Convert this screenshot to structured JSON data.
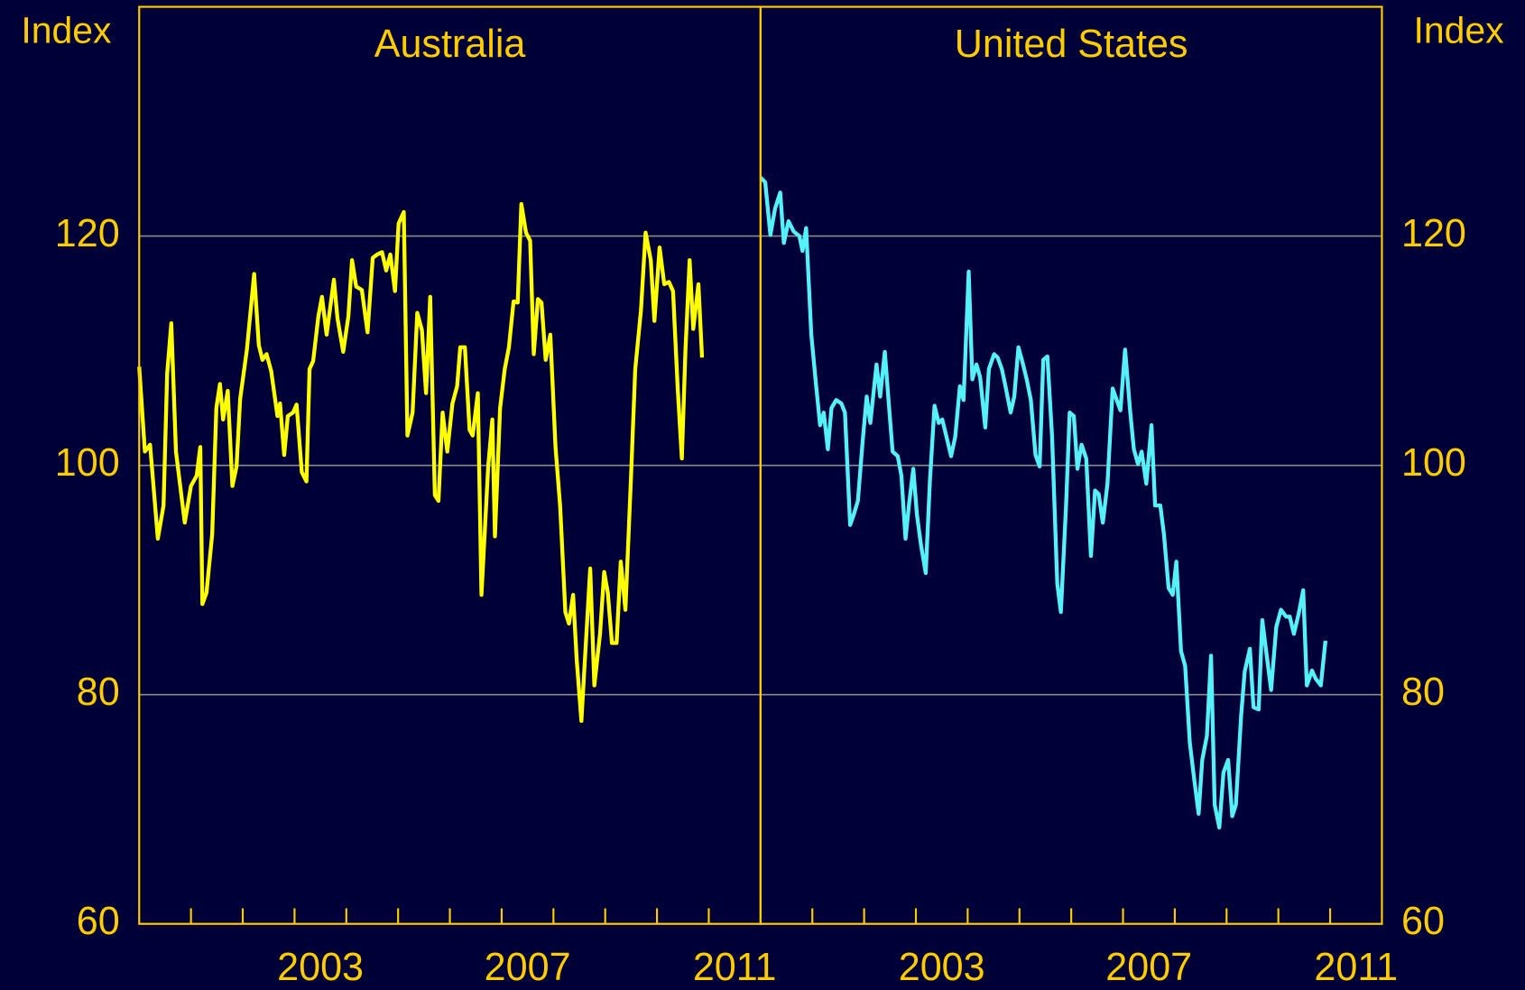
{
  "chart_data": [
    {
      "type": "line",
      "title": "Australia",
      "y_label": "Index",
      "axis_side": "left",
      "color": "#ffff00",
      "xlim": [
        2000,
        2012
      ],
      "ylim": [
        60,
        140
      ],
      "yticks": [
        60,
        80,
        100,
        120
      ],
      "grid": true,
      "xticks": [
        {
          "value": 2003.5,
          "label": "2003"
        },
        {
          "value": 2007.5,
          "label": "2007"
        },
        {
          "value": 2011.5,
          "label": "2011"
        }
      ],
      "minor_xticks": [
        2001,
        2002,
        2003,
        2004,
        2005,
        2006,
        2007,
        2008,
        2009,
        2010,
        2011
      ],
      "x": [
        2000,
        2000.11,
        2000.21,
        2000.36,
        2000.47,
        2000.54,
        2000.62,
        2000.71,
        2000.88,
        2001,
        2001.11,
        2001.18,
        2001.22,
        2001.3,
        2001.41,
        2001.49,
        2001.56,
        2001.62,
        2001.71,
        2001.8,
        2001.88,
        2001.95,
        2002.08,
        2002.22,
        2002.31,
        2002.38,
        2002.46,
        2002.55,
        2002.67,
        2002.72,
        2002.8,
        2002.87,
        2002.97,
        2003.04,
        2003.14,
        2003.23,
        2003.29,
        2003.36,
        2003.46,
        2003.53,
        2003.62,
        2003.76,
        2003.83,
        2003.94,
        2004.04,
        2004.11,
        2004.19,
        2004.3,
        2004.41,
        2004.51,
        2004.6,
        2004.69,
        2004.77,
        2004.85,
        2004.94,
        2005.01,
        2005.11,
        2005.18,
        2005.28,
        2005.37,
        2005.46,
        2005.54,
        2005.62,
        2005.71,
        2005.78,
        2005.86,
        2005.95,
        2006.05,
        2006.14,
        2006.2,
        2006.29,
        2006.38,
        2006.44,
        2006.54,
        2006.61,
        2006.74,
        2006.82,
        2006.87,
        2006.97,
        2007.06,
        2007.14,
        2007.23,
        2007.31,
        2007.38,
        2007.47,
        2007.55,
        2007.62,
        2007.7,
        2007.77,
        2007.85,
        2007.94,
        2008.04,
        2008.13,
        2008.23,
        2008.3,
        2008.38,
        2008.45,
        2008.54,
        2008.62,
        2008.71,
        2008.79,
        2008.9,
        2008.98,
        2009.05,
        2009.13,
        2009.22,
        2009.3,
        2009.39,
        2009.5,
        2009.58,
        2009.69,
        2009.78,
        2009.88,
        2009.95,
        2010.05,
        2010.14,
        2010.23,
        2010.31,
        2010.4,
        2010.48,
        2010.55,
        2010.63,
        2010.7,
        2010.8,
        2010.87
      ],
      "values": [
        108.6,
        101.2,
        101.8,
        93.6,
        96.5,
        108,
        112.4,
        101.2,
        95,
        98.2,
        99.1,
        101.6,
        87.9,
        88.9,
        94,
        105,
        107.1,
        104,
        106.5,
        98.2,
        99.9,
        105.8,
        110.1,
        116.7,
        110.5,
        109.2,
        109.7,
        108.2,
        104.3,
        105.4,
        100.9,
        104.3,
        104.6,
        105.3,
        99.4,
        98.6,
        108.4,
        109.1,
        113,
        114.7,
        111.4,
        116.2,
        112.8,
        109.9,
        113,
        117.9,
        115.6,
        115.3,
        111.6,
        118.1,
        118.4,
        118.6,
        117,
        118.4,
        115.2,
        121.1,
        122.1,
        102.6,
        104.6,
        113.3,
        111.8,
        106.3,
        114.7,
        97.4,
        96.9,
        104.6,
        101.2,
        105.4,
        106.9,
        110.3,
        110.3,
        103.1,
        102.6,
        106.3,
        88.7,
        99.9,
        104,
        93.8,
        105,
        108.4,
        110.3,
        114.3,
        114.2,
        122.8,
        120.3,
        119.6,
        109.7,
        114.5,
        114.2,
        109.2,
        111.4,
        101.6,
        96.4,
        87.2,
        86.2,
        88.7,
        83,
        77.7,
        84,
        91,
        80.8,
        85.3,
        90.7,
        88.9,
        84.5,
        84.5,
        91.6,
        87.4,
        99.2,
        108.4,
        113.5,
        120.3,
        117.9,
        112.6,
        119,
        115.8,
        116,
        115.2,
        106.7,
        100.6,
        110.1,
        117.9,
        111.9,
        115.8,
        109.4
      ]
    },
    {
      "type": "line",
      "title": "United States",
      "y_label": "Index",
      "axis_side": "right",
      "color": "#55f0f8",
      "xlim": [
        2000,
        2012
      ],
      "ylim": [
        60,
        140
      ],
      "yticks": [
        60,
        80,
        100,
        120
      ],
      "grid": true,
      "xticks": [
        {
          "value": 2003.5,
          "label": "2003"
        },
        {
          "value": 2007.5,
          "label": "2007"
        },
        {
          "value": 2011.5,
          "label": "2011"
        }
      ],
      "minor_xticks": [
        2001,
        2002,
        2003,
        2004,
        2005,
        2006,
        2007,
        2008,
        2009,
        2010,
        2011
      ],
      "x": [
        2000,
        2000.09,
        2000.19,
        2000.28,
        2000.38,
        2000.45,
        2000.54,
        2000.64,
        2000.75,
        2000.81,
        2000.88,
        2000.98,
        2001.07,
        2001.15,
        2001.22,
        2001.3,
        2001.37,
        2001.46,
        2001.56,
        2001.63,
        2001.73,
        2001.8,
        2001.88,
        2001.97,
        2002.05,
        2002.12,
        2002.24,
        2002.31,
        2002.4,
        2002.48,
        2002.55,
        2002.65,
        2002.72,
        2002.8,
        2002.87,
        2002.95,
        2003.02,
        2003.1,
        2003.19,
        2003.27,
        2003.36,
        2003.44,
        2003.51,
        2003.59,
        2003.68,
        2003.76,
        2003.85,
        2003.92,
        2004.02,
        2004.09,
        2004.17,
        2004.24,
        2004.34,
        2004.41,
        2004.51,
        2004.58,
        2004.66,
        2004.73,
        2004.83,
        2004.9,
        2004.98,
        2005.07,
        2005.14,
        2005.22,
        2005.31,
        2005.39,
        2005.46,
        2005.54,
        2005.63,
        2005.73,
        2005.8,
        2005.9,
        2005.97,
        2006.05,
        2006.12,
        2006.2,
        2006.29,
        2006.38,
        2006.46,
        2006.53,
        2006.61,
        2006.7,
        2006.8,
        2006.87,
        2006.95,
        2007.04,
        2007.14,
        2007.21,
        2007.29,
        2007.36,
        2007.45,
        2007.55,
        2007.62,
        2007.72,
        2007.79,
        2007.88,
        2007.96,
        2008.03,
        2008.12,
        2008.2,
        2008.29,
        2008.37,
        2008.46,
        2008.53,
        2008.62,
        2008.7,
        2008.77,
        2008.86,
        2008.94,
        2009.03,
        2009.11,
        2009.18,
        2009.28,
        2009.35,
        2009.45,
        2009.52,
        2009.62,
        2009.69,
        2009.77,
        2009.86,
        2009.96,
        2010.05,
        2010.15,
        2010.22,
        2010.3,
        2010.39,
        2010.48,
        2010.55,
        2010.65,
        2010.72,
        2010.82,
        2010.91
      ],
      "values": [
        125.1,
        124.7,
        120.1,
        122.4,
        123.8,
        119.4,
        121.3,
        120.4,
        120,
        118.7,
        120.7,
        111.4,
        107.1,
        103.5,
        104.6,
        101.4,
        105,
        105.7,
        105.4,
        104.6,
        94.8,
        95.7,
        96.9,
        102,
        106,
        103.7,
        108.8,
        106,
        109.9,
        105.2,
        101.2,
        100.8,
        99.1,
        93.6,
        96.7,
        99.7,
        95.7,
        93,
        90.6,
        98.6,
        105.2,
        103.7,
        104,
        102.5,
        100.8,
        102.5,
        106.9,
        105.7,
        116.9,
        107.5,
        108.8,
        107.7,
        103.3,
        108.4,
        109.7,
        109.4,
        108.4,
        106.9,
        104.6,
        106,
        110.3,
        108.8,
        107.5,
        105.7,
        100.9,
        99.9,
        109.2,
        109.5,
        102.5,
        89.7,
        87.2,
        96.5,
        104.6,
        104.3,
        99.7,
        101.8,
        100.6,
        92.1,
        97.8,
        97.5,
        95,
        98.4,
        106.7,
        105.8,
        104.8,
        110.1,
        104.6,
        101.4,
        100.1,
        101.2,
        98.4,
        103.5,
        96.5,
        96.5,
        94,
        89.3,
        88.7,
        91.6,
        83.8,
        82.5,
        75.8,
        72.8,
        69.6,
        74.3,
        76.4,
        83.4,
        70.4,
        68.4,
        73.2,
        74.3,
        69.4,
        70.4,
        78.1,
        82,
        84,
        78.9,
        78.7,
        86.5,
        83.6,
        80.4,
        85.9,
        87.4,
        86.8,
        86.8,
        85.3,
        87,
        89.1,
        80.8,
        82.1,
        81.4,
        80.8,
        84.7
      ]
    }
  ]
}
